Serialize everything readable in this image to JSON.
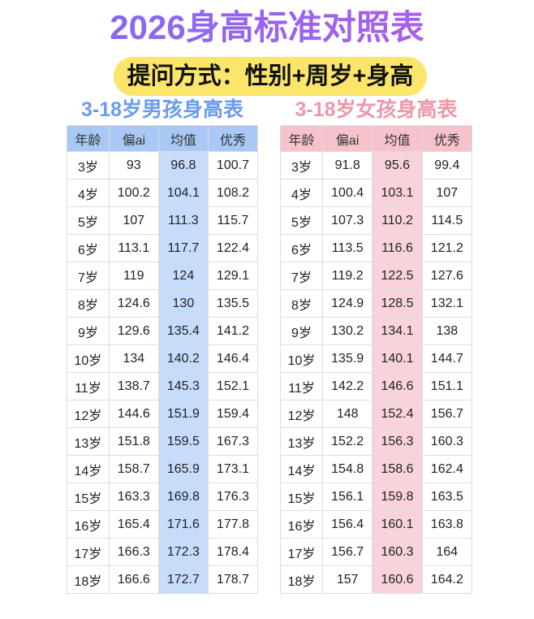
{
  "header": {
    "title": "2026身高标准对照表",
    "subtitle": "提问方式：性别+周岁+身高"
  },
  "boys": {
    "title": "3-18岁男孩身高表",
    "columns": [
      "年龄",
      "偏ai",
      "均值",
      "优秀"
    ],
    "rows": [
      [
        "3岁",
        "93",
        "96.8",
        "100.7"
      ],
      [
        "4岁",
        "100.2",
        "104.1",
        "108.2"
      ],
      [
        "5岁",
        "107",
        "111.3",
        "115.7"
      ],
      [
        "6岁",
        "113.1",
        "117.7",
        "122.4"
      ],
      [
        "7岁",
        "119",
        "124",
        "129.1"
      ],
      [
        "8岁",
        "124.6",
        "130",
        "135.5"
      ],
      [
        "9岁",
        "129.6",
        "135.4",
        "141.2"
      ],
      [
        "10岁",
        "134",
        "140.2",
        "146.4"
      ],
      [
        "11岁",
        "138.7",
        "145.3",
        "152.1"
      ],
      [
        "12岁",
        "144.6",
        "151.9",
        "159.4"
      ],
      [
        "13岁",
        "151.8",
        "159.5",
        "167.3"
      ],
      [
        "14岁",
        "158.7",
        "165.9",
        "173.1"
      ],
      [
        "15岁",
        "163.3",
        "169.8",
        "176.3"
      ],
      [
        "16岁",
        "165.4",
        "171.6",
        "177.8"
      ],
      [
        "17岁",
        "166.3",
        "172.3",
        "178.4"
      ],
      [
        "18岁",
        "166.6",
        "172.7",
        "178.7"
      ]
    ]
  },
  "girls": {
    "title": "3-18岁女孩身高表",
    "columns": [
      "年龄",
      "偏ai",
      "均值",
      "优秀"
    ],
    "rows": [
      [
        "3岁",
        "91.8",
        "95.6",
        "99.4"
      ],
      [
        "4岁",
        "100.4",
        "103.1",
        "107"
      ],
      [
        "5岁",
        "107.3",
        "110.2",
        "114.5"
      ],
      [
        "6岁",
        "113.5",
        "116.6",
        "121.2"
      ],
      [
        "7岁",
        "119.2",
        "122.5",
        "127.6"
      ],
      [
        "8岁",
        "124.9",
        "128.5",
        "132.1"
      ],
      [
        "9岁",
        "130.2",
        "134.1",
        "138"
      ],
      [
        "10岁",
        "135.9",
        "140.1",
        "144.7"
      ],
      [
        "11岁",
        "142.2",
        "146.6",
        "151.1"
      ],
      [
        "12岁",
        "148",
        "152.4",
        "156.7"
      ],
      [
        "13岁",
        "152.2",
        "156.3",
        "160.3"
      ],
      [
        "14岁",
        "154.8",
        "158.6",
        "162.4"
      ],
      [
        "15岁",
        "156.1",
        "159.8",
        "163.5"
      ],
      [
        "16岁",
        "156.4",
        "160.1",
        "163.8"
      ],
      [
        "17岁",
        "156.7",
        "160.3",
        "164"
      ],
      [
        "18岁",
        "157",
        "160.6",
        "164.2"
      ]
    ]
  }
}
